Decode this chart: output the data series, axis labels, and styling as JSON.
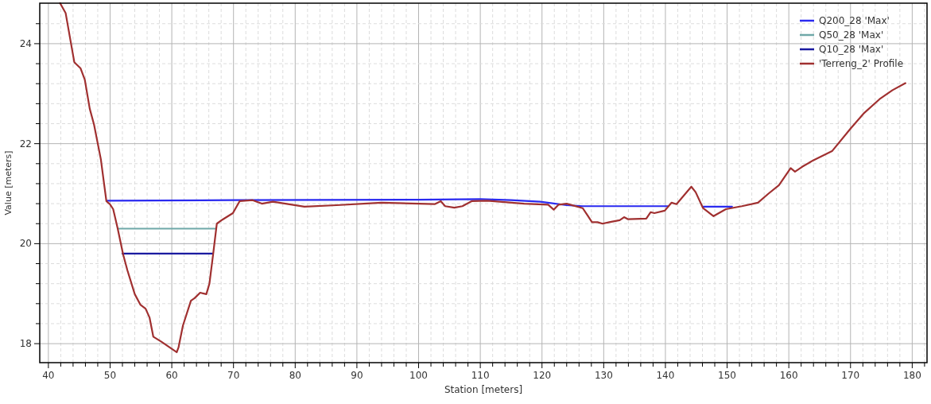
{
  "chart_data": {
    "type": "line",
    "xlabel": "Station [meters]",
    "ylabel": "Value [meters]",
    "xlim": [
      38.6,
      182.4
    ],
    "ylim": [
      17.62,
      24.81
    ],
    "xticks": [
      40,
      {
        "value": 42,
        "label": null
      },
      {
        "value": 44,
        "label": null
      },
      {
        "value": 46,
        "label": null
      },
      {
        "value": 48,
        "label": null
      },
      50,
      {
        "value": 52,
        "label": null
      },
      {
        "value": 54,
        "label": null
      },
      {
        "value": 56,
        "label": null
      },
      {
        "value": 58,
        "label": null
      },
      60,
      {
        "value": 62,
        "label": null
      },
      {
        "value": 64,
        "label": null
      },
      {
        "value": 66,
        "label": null
      },
      {
        "value": 68,
        "label": null
      },
      70,
      {
        "value": 72,
        "label": null
      },
      {
        "value": 74,
        "label": null
      },
      {
        "value": 76,
        "label": null
      },
      {
        "value": 78,
        "label": null
      },
      80,
      {
        "value": 82,
        "label": null
      },
      {
        "value": 84,
        "label": null
      },
      {
        "value": 86,
        "label": null
      },
      {
        "value": 88,
        "label": null
      },
      90,
      {
        "value": 92,
        "label": null
      },
      {
        "value": 94,
        "label": null
      },
      {
        "value": 96,
        "label": null
      },
      {
        "value": 98,
        "label": null
      },
      100,
      {
        "value": 102,
        "label": null
      },
      {
        "value": 104,
        "label": null
      },
      {
        "value": 106,
        "label": null
      },
      {
        "value": 108,
        "label": null
      },
      110,
      {
        "value": 112,
        "label": null
      },
      {
        "value": 114,
        "label": null
      },
      {
        "value": 116,
        "label": null
      },
      {
        "value": 118,
        "label": null
      },
      120,
      {
        "value": 122,
        "label": null
      },
      {
        "value": 124,
        "label": null
      },
      {
        "value": 126,
        "label": null
      },
      {
        "value": 128,
        "label": null
      },
      130,
      {
        "value": 132,
        "label": null
      },
      {
        "value": 134,
        "label": null
      },
      {
        "value": 136,
        "label": null
      },
      {
        "value": 138,
        "label": null
      },
      140,
      {
        "value": 142,
        "label": null
      },
      {
        "value": 144,
        "label": null
      },
      {
        "value": 146,
        "label": null
      },
      {
        "value": 148,
        "label": null
      },
      150,
      {
        "value": 152,
        "label": null
      },
      {
        "value": 154,
        "label": null
      },
      {
        "value": 156,
        "label": null
      },
      {
        "value": 158,
        "label": null
      },
      160,
      {
        "value": 162,
        "label": null
      },
      {
        "value": 164,
        "label": null
      },
      {
        "value": 166,
        "label": null
      },
      {
        "value": 168,
        "label": null
      },
      170,
      {
        "value": 172,
        "label": null
      },
      {
        "value": 174,
        "label": null
      },
      {
        "value": 176,
        "label": null
      },
      {
        "value": 178,
        "label": null
      },
      180,
      {
        "value": 182,
        "label": null
      }
    ],
    "yticks": [
      18,
      {
        "value": 18.4,
        "label": null
      },
      {
        "value": 18.8,
        "label": null
      },
      {
        "value": 19.2,
        "label": null
      },
      {
        "value": 19.6,
        "label": null
      },
      20,
      {
        "value": 20.4,
        "label": null
      },
      {
        "value": 20.8,
        "label": null
      },
      {
        "value": 21.2,
        "label": null
      },
      {
        "value": 21.6,
        "label": null
      },
      22,
      {
        "value": 22.4,
        "label": null
      },
      {
        "value": 22.8,
        "label": null
      },
      {
        "value": 23.2,
        "label": null
      },
      {
        "value": 23.6,
        "label": null
      },
      24,
      {
        "value": 24.4,
        "label": null
      }
    ],
    "grid": true,
    "legend": "top right",
    "line_style": "solid",
    "series": [
      {
        "name": "Q200_28 'Max'",
        "color": "#2a2af0",
        "x": [
          49.5,
          70,
          100,
          110,
          115,
          119.7,
          124,
          126.6,
          140.5,
          143,
          146.1,
          150.8
        ],
        "values": [
          20.86,
          20.87,
          20.88,
          20.89,
          20.87,
          20.84,
          20.77,
          20.75,
          20.75,
          null,
          20.74,
          20.74
        ]
      },
      {
        "name": "Q50_28 'Max'",
        "color": "#6fa8a8",
        "x": [
          51.4,
          67.1
        ],
        "values": [
          20.3,
          20.3
        ]
      },
      {
        "name": "Q10_28 'Max'",
        "color": "#1a1aa0",
        "x": [
          52.0,
          66.6
        ],
        "values": [
          19.8,
          19.8
        ]
      },
      {
        "name": "'Terreng_2' Profile",
        "color": "#a03030",
        "x": [
          41.9,
          42.8,
          44.2,
          45.2,
          45.9,
          46.7,
          47.4,
          48.5,
          49.0,
          49.4,
          49.96,
          50.5,
          51.2,
          52.1,
          52.8,
          54.0,
          54.9,
          55.75,
          56.4,
          57.0,
          58.3,
          60.8,
          61.1,
          61.8,
          63.1,
          63.7,
          64.6,
          65.6,
          66.1,
          66.7,
          67.3,
          68.2,
          69.9,
          71.0,
          73.1,
          74.6,
          76.4,
          81.5,
          86.7,
          94.0,
          102.6,
          103.6,
          104.3,
          105.8,
          107.1,
          108.6,
          111.1,
          117.1,
          121.0,
          121.9,
          122.7,
          124.0,
          126.6,
          127.3,
          128.1,
          129.0,
          129.8,
          130.9,
          132.6,
          133.3,
          133.9,
          136.9,
          137.6,
          138.2,
          139.9,
          141.0,
          141.8,
          144.2,
          144.9,
          146.1,
          147.8,
          149.8,
          152.4,
          155.0,
          156.7,
          158.4,
          160.3,
          161.0,
          162.2,
          164.0,
          167.0,
          170.0,
          172.1,
          174.7,
          176.8,
          178.9
        ],
        "values": [
          24.81,
          24.61,
          23.63,
          23.51,
          23.28,
          22.7,
          22.38,
          21.69,
          21.22,
          20.85,
          20.79,
          20.69,
          20.32,
          19.79,
          19.47,
          18.99,
          18.78,
          18.7,
          18.52,
          18.14,
          18.04,
          17.83,
          17.93,
          18.36,
          18.86,
          18.91,
          19.02,
          18.99,
          19.2,
          19.79,
          20.4,
          20.48,
          20.61,
          20.85,
          20.87,
          20.8,
          20.84,
          20.74,
          20.77,
          20.82,
          20.79,
          20.85,
          20.75,
          20.72,
          20.75,
          20.85,
          20.86,
          20.8,
          20.78,
          20.68,
          20.78,
          20.8,
          20.71,
          20.58,
          20.43,
          20.43,
          20.4,
          20.43,
          20.47,
          20.53,
          20.49,
          20.5,
          20.63,
          20.61,
          20.66,
          20.82,
          20.79,
          21.14,
          21.03,
          20.71,
          20.55,
          20.69,
          20.75,
          20.82,
          21.0,
          21.17,
          21.51,
          21.44,
          21.54,
          21.67,
          21.85,
          22.3,
          22.6,
          22.89,
          23.07,
          23.21
        ]
      }
    ]
  }
}
